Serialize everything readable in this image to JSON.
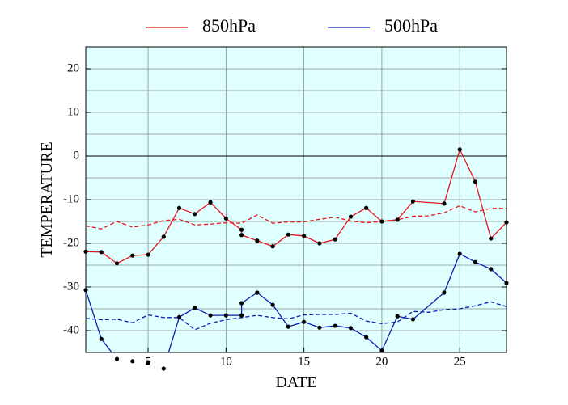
{
  "chart_data": {
    "type": "line",
    "xlabel": "DATE",
    "ylabel": "TEMPERATURE",
    "xlim": [
      1,
      28
    ],
    "ylim": [
      -45,
      25
    ],
    "xticks": [
      5,
      10,
      15,
      20,
      25
    ],
    "yticks": [
      -40,
      -30,
      -20,
      -10,
      0,
      10,
      20
    ],
    "grid": true,
    "grid_step": 5,
    "zero_line": true,
    "background": "#e0ffff",
    "legend": "top",
    "series": [
      {
        "name": "850hPa",
        "color": "#e8141a",
        "linestyle": "solid",
        "markers": true,
        "x": [
          1,
          2,
          3,
          4,
          5,
          6,
          7,
          8,
          9,
          10,
          11,
          11,
          12,
          13,
          14,
          15,
          16,
          17,
          18,
          19,
          20,
          21,
          22,
          24,
          25,
          26,
          27,
          28
        ],
        "values": [
          -21.9,
          -22.0,
          -24.6,
          -22.8,
          -22.6,
          -18.5,
          -11.9,
          -13.3,
          -10.6,
          -14.3,
          -16.9,
          -18.1,
          -19.4,
          -20.7,
          -18.0,
          -18.3,
          -20.0,
          -19.1,
          -13.9,
          -11.9,
          -15.0,
          -14.6,
          -10.4,
          -10.9,
          1.5,
          -5.9,
          -18.9,
          -15.2
        ]
      },
      {
        "color": "#e8141a",
        "linestyle": "dashed",
        "markers": false,
        "x": [
          1,
          2,
          3,
          4,
          5,
          6,
          7,
          8,
          9,
          10,
          11,
          12,
          13,
          14,
          15,
          16,
          17,
          18,
          19,
          20,
          21,
          22,
          23,
          24,
          25,
          26,
          27,
          28
        ],
        "values": [
          -16.0,
          -16.7,
          -15.0,
          -16.3,
          -15.8,
          -14.8,
          -14.5,
          -15.8,
          -15.6,
          -15.3,
          -15.4,
          -13.5,
          -15.4,
          -15.1,
          -15.1,
          -14.5,
          -14.0,
          -14.9,
          -15.3,
          -15.0,
          -14.6,
          -13.8,
          -13.7,
          -13.0,
          -11.4,
          -12.8,
          -12.0,
          -12.0
        ]
      },
      {
        "name": "500hPa",
        "color": "#0c1cb8",
        "linestyle": "solid",
        "markers": true,
        "x": [
          1,
          2,
          3,
          4,
          5,
          6,
          7,
          8,
          9,
          10,
          11,
          11,
          12,
          13,
          14,
          15,
          16,
          17,
          18,
          19,
          20,
          21,
          22,
          24,
          25,
          26,
          27,
          28
        ],
        "values": [
          -30.7,
          -41.9,
          -46.5,
          -47.0,
          -47.4,
          -48.7,
          -36.9,
          -34.8,
          -36.5,
          -36.5,
          -36.5,
          -33.7,
          -31.3,
          -34.1,
          -39.1,
          -38.0,
          -39.3,
          -38.9,
          -39.4,
          -41.5,
          -44.6,
          -36.7,
          -37.4,
          -31.3,
          -22.4,
          -24.3,
          -25.9,
          -29.1
        ]
      },
      {
        "color": "#0c1cb8",
        "linestyle": "dashed",
        "markers": false,
        "x": [
          1,
          2,
          3,
          4,
          5,
          6,
          7,
          8,
          9,
          10,
          11,
          12,
          13,
          14,
          15,
          16,
          17,
          18,
          19,
          20,
          21,
          22,
          23,
          24,
          25,
          26,
          27,
          28
        ],
        "values": [
          -37.2,
          -37.5,
          -37.4,
          -38.2,
          -36.4,
          -37.0,
          -37.0,
          -39.8,
          -38.3,
          -37.5,
          -37.0,
          -36.5,
          -37.0,
          -37.3,
          -36.4,
          -36.3,
          -36.3,
          -36.0,
          -37.8,
          -38.4,
          -38.0,
          -35.6,
          -35.8,
          -35.2,
          -35.0,
          -34.3,
          -33.4,
          -34.5
        ]
      }
    ]
  }
}
